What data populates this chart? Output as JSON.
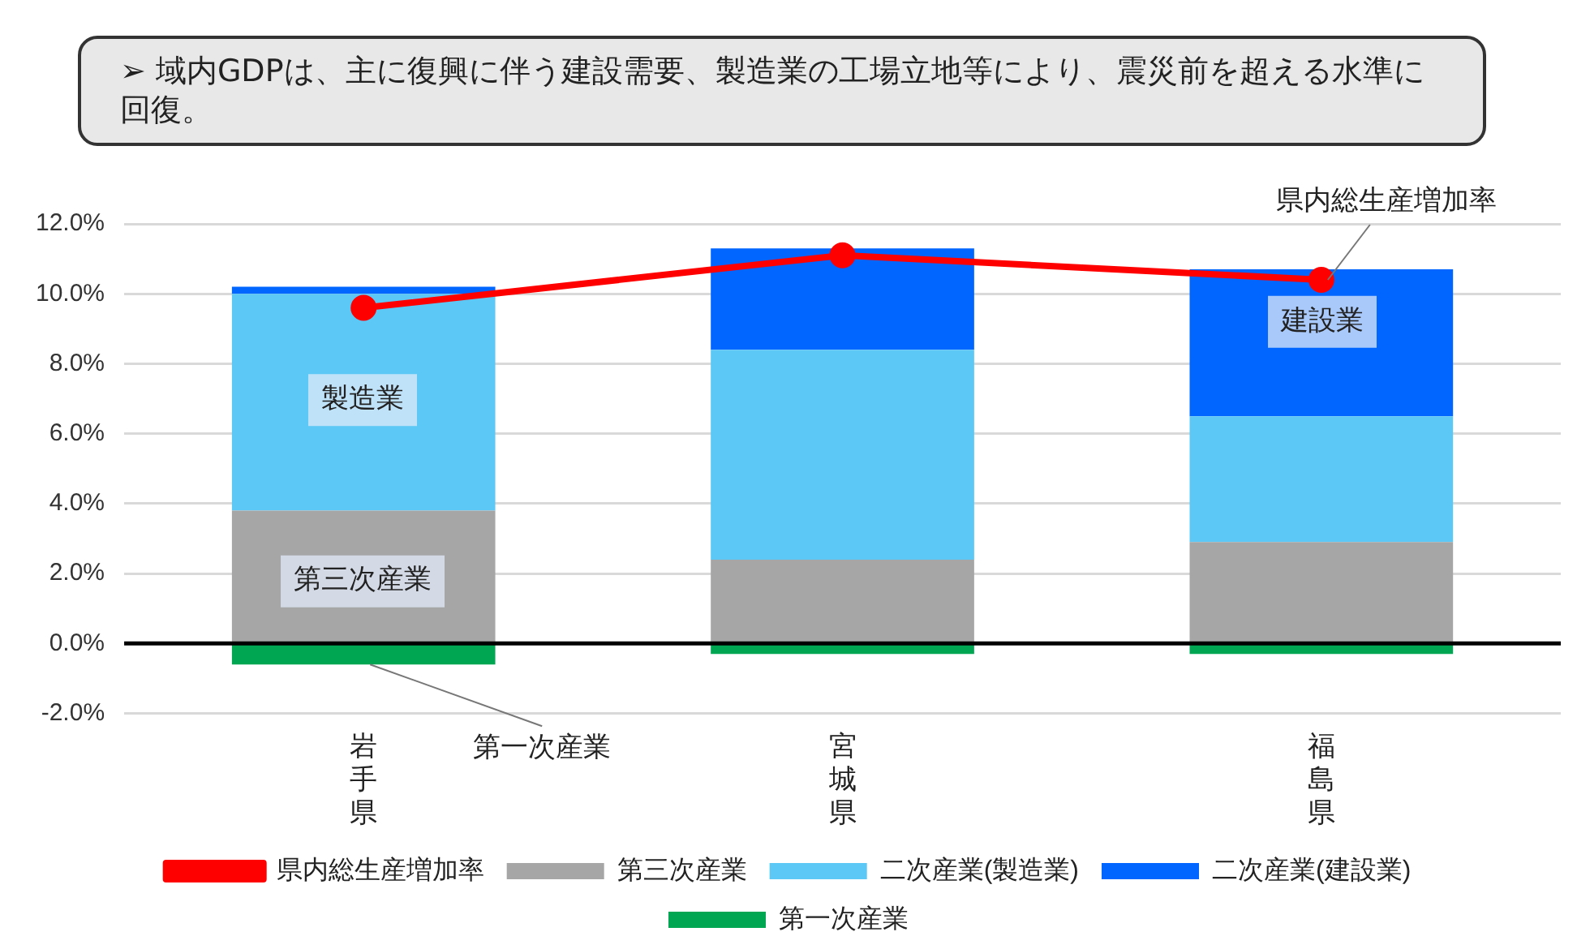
{
  "chart_data": {
    "type": "bar",
    "stacked": true,
    "subtitle": "➢ 域内GDPは、主に復興に伴う建設需要、製造業の工場立地等により、震災前を超える水準に回復。",
    "categories": [
      "岩手県",
      "宮城県",
      "福島県"
    ],
    "series": [
      {
        "name": "第三次産業",
        "color": "#a6a6a6",
        "values": [
          3.8,
          2.4,
          2.9
        ]
      },
      {
        "name": "二次産業(製造業)",
        "color": "#5bc8f5",
        "values": [
          6.2,
          6.0,
          3.6
        ]
      },
      {
        "name": "二次産業(建設業)",
        "color": "#0066ff",
        "values": [
          0.2,
          2.9,
          4.2
        ]
      },
      {
        "name": "第一次産業",
        "color": "#00a651",
        "values": [
          -0.6,
          -0.3,
          -0.3
        ]
      },
      {
        "name": "県内総生産増加率",
        "type": "line",
        "color": "#ff0000",
        "marker": "circle",
        "values": [
          9.6,
          11.1,
          10.4
        ]
      }
    ],
    "ylim": [
      -2,
      12
    ],
    "yticks": [
      {
        "value": -2,
        "label": "-2.0%"
      },
      {
        "value": 0,
        "label": "0.0%"
      },
      {
        "value": 2,
        "label": "2.0%"
      },
      {
        "value": 4,
        "label": "4.0%"
      },
      {
        "value": 6,
        "label": "6.0%"
      },
      {
        "value": 8,
        "label": "8.0%"
      },
      {
        "value": 10,
        "label": "10.0%"
      },
      {
        "value": 12,
        "label": "12.0%"
      }
    ],
    "grid": "y",
    "legend": "bottom",
    "annotations": [
      "製造業",
      "第三次産業",
      "建設業",
      {
        "text": "第一次産業",
        "x": "岩手県",
        "y": -0.6
      },
      {
        "text": "県内総生産増加率",
        "x": "福島県",
        "y": 10.4
      }
    ]
  }
}
